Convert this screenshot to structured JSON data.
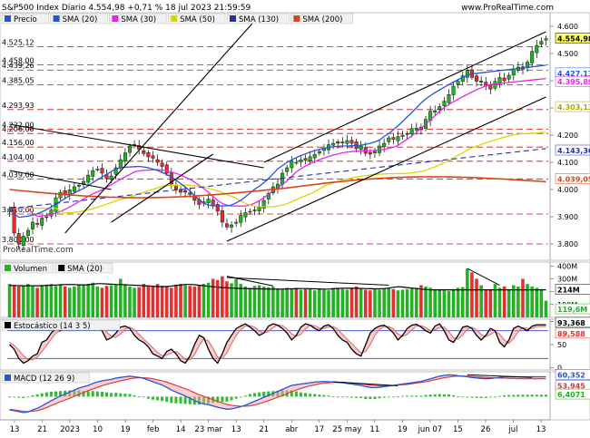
{
  "header": {
    "title": "S&P500 Index Diario 4.554,98 +0,71 % 18 jul 2023 21:59:59",
    "brand": "www.ProRealTime.com",
    "watermark": "ProRealTime.com"
  },
  "chart_data": [
    {
      "type": "candlestick",
      "panel": "price",
      "legend": [
        "Precio",
        "SMA (20)",
        "SMA (30)",
        "SMA (50)",
        "SMA (130)",
        "SMA (200)"
      ],
      "colors": {
        "up": "#22b222",
        "down": "#e03030",
        "sma20": "#2255dd",
        "sma30": "#ee22ee",
        "sma50": "#d8d800",
        "sma130": "#2233aa",
        "sma200": "#dd4411",
        "ref": "#cc1111"
      },
      "ylim": [
        3740,
        4650
      ],
      "yticks": [
        3800,
        3900,
        4000,
        4100,
        4200,
        4300,
        4400,
        4500,
        4600
      ],
      "ytick_labels": [
        "3.800",
        "3.900",
        "4.000",
        "4.100",
        "4.200",
        "4.300",
        "4.400",
        "4.500",
        "4.600"
      ],
      "left_levels": [
        4525.12,
        4458.0,
        4439.26,
        4385.05,
        4293.93,
        4222.0,
        4206.0,
        4156.0,
        4104.0,
        4039.0,
        3910.0,
        3800.0
      ],
      "left_level_labels": [
        "4.525,12",
        "4.458,00",
        "4.439,26",
        "4.385,05",
        "4.293,93",
        "4.222,00",
        "4.206,00",
        "4.156,00",
        "4.104,00",
        "4.039,00",
        "3.910,00",
        "3.800,00"
      ],
      "right_labels": [
        {
          "text": "4.554,98",
          "value": 4554.98,
          "bg": "#ffff66",
          "fg": "#000000"
        },
        {
          "text": "4.427,13",
          "value": 4427.13,
          "bg": "#ffffff",
          "fg": "#2255dd"
        },
        {
          "text": "4.395,89",
          "value": 4395.89,
          "bg": "#ffffff",
          "fg": "#ee22ee"
        },
        {
          "text": "4.303,13",
          "value": 4303.13,
          "bg": "#ffffff",
          "fg": "#a8a800"
        },
        {
          "text": "4.143,36",
          "value": 4143.36,
          "bg": "#ffffff",
          "fg": "#2233aa"
        },
        {
          "text": "4.039,05",
          "value": 4039.05,
          "bg": "#ffffff",
          "fg": "#dd4411"
        }
      ],
      "x_labels": [
        "13",
        "21",
        "2023",
        "10",
        "19",
        "feb",
        "14",
        "23 mar",
        "13",
        "21",
        "abr",
        "17",
        "25 may",
        "11",
        "19",
        "jun 07",
        "15",
        "26",
        "jul",
        "13"
      ],
      "closes": [
        3930,
        3840,
        3800,
        3828,
        3850,
        3880,
        3872,
        3895,
        3900,
        3925,
        3970,
        3990,
        3980,
        3999,
        4010,
        4016,
        4030,
        4053,
        4070,
        4075,
        4060,
        4040,
        4050,
        4080,
        4110,
        4135,
        4160,
        4165,
        4148,
        4132,
        4120,
        4115,
        4100,
        4085,
        4060,
        4020,
        4000,
        3990,
        3990,
        3982,
        3960,
        3945,
        3955,
        3965,
        3940,
        3920,
        3880,
        3862,
        3870,
        3880,
        3905,
        3915,
        3920,
        3925,
        3935,
        3960,
        3985,
        4010,
        4020,
        4060,
        4080,
        4105,
        4100,
        4109,
        4108,
        4121,
        4129,
        4140,
        4151,
        4165,
        4170,
        4170,
        4175,
        4180,
        4170,
        4150,
        4160,
        4133,
        4130,
        4140,
        4160,
        4170,
        4190,
        4185,
        4195,
        4200,
        4205,
        4224,
        4226,
        4220,
        4258,
        4288,
        4290,
        4305,
        4325,
        4349,
        4380,
        4398,
        4418,
        4438,
        4412,
        4398,
        4399,
        4380,
        4369,
        4398,
        4412,
        4400,
        4420,
        4444,
        4450,
        4442,
        4468,
        4508,
        4530,
        4545,
        4555
      ],
      "sma20": [
        3930,
        3910,
        3898,
        3900,
        3902,
        3906,
        3911,
        3918,
        3926,
        3936,
        3946,
        3957,
        3967,
        3978,
        3988,
        3996,
        4004,
        4014,
        4025,
        4036,
        4046,
        4056,
        4066,
        4076,
        4080,
        4082,
        4083,
        4084,
        4085,
        4083,
        4080,
        4075,
        4070,
        4063,
        4055,
        4046,
        4035,
        4022,
        4009,
        3995,
        3978,
        3962,
        3950,
        3943,
        3940,
        3940,
        3940,
        3940,
        3943,
        3951,
        3960,
        3973,
        3987,
        4001,
        4012,
        4025,
        4040,
        4058,
        4076,
        4088,
        4100,
        4109,
        4117,
        4125,
        4131,
        4138,
        4143,
        4148,
        4152,
        4155,
        4157,
        4159,
        4160,
        4160,
        4161,
        4162,
        4163,
        4166,
        4170,
        4175,
        4182,
        4195,
        4206,
        4220,
        4234,
        4250,
        4267,
        4283,
        4300,
        4318,
        4333,
        4345,
        4356,
        4366,
        4376,
        4386,
        4395,
        4404,
        4412,
        4420,
        4425,
        4427
      ]
    },
    {
      "type": "bar",
      "panel": "volume",
      "legend": [
        "Volumen",
        "SMA (20)"
      ],
      "ylim": [
        0,
        430
      ],
      "yticks": [
        100,
        200,
        300,
        400
      ],
      "ytick_labels": [
        "100M",
        "200M",
        "300M",
        "400M"
      ],
      "right_labels": [
        "214M",
        "119,6M"
      ],
      "values": [
        260,
        250,
        240,
        250,
        260,
        240,
        230,
        250,
        255,
        260,
        245,
        250,
        240,
        230,
        240,
        250,
        255,
        260,
        270,
        240,
        230,
        245,
        250,
        255,
        300,
        250,
        240,
        230,
        235,
        260,
        250,
        240,
        260,
        245,
        240,
        230,
        255,
        260,
        250,
        245,
        240,
        250,
        260,
        270,
        300,
        290,
        320,
        280,
        265,
        300,
        260,
        240,
        230,
        245,
        250,
        240,
        235,
        240,
        225,
        220,
        230,
        220,
        230,
        215,
        220,
        225,
        210,
        220,
        215,
        210,
        230,
        225,
        220,
        215,
        230,
        240,
        220,
        215,
        210,
        220,
        215,
        225,
        230,
        220,
        210,
        215,
        220,
        225,
        230,
        250,
        240,
        230,
        220,
        215,
        210,
        205,
        220,
        230,
        235,
        380,
        350,
        300,
        250,
        210,
        220,
        260,
        230,
        240,
        220,
        250,
        240,
        300,
        260,
        240,
        230,
        220,
        130
      ],
      "sma": [
        248,
        248,
        247,
        246,
        246,
        246,
        246,
        247,
        248,
        250,
        252,
        254,
        255,
        256,
        255,
        253,
        253,
        254,
        258,
        262,
        262,
        260,
        258,
        256,
        255,
        254,
        252,
        250,
        248,
        246,
        244,
        242,
        240,
        240,
        240,
        243,
        248,
        252,
        256,
        256,
        254,
        250,
        246,
        242,
        238,
        235,
        232,
        230,
        228,
        226,
        225,
        224,
        223,
        222,
        222,
        221,
        220,
        220,
        220,
        220,
        221,
        222,
        223,
        224,
        224,
        223,
        222,
        221,
        220,
        220,
        222,
        225,
        226,
        226,
        227,
        226,
        225,
        224,
        223,
        222,
        222,
        224,
        228,
        234,
        238,
        236,
        232,
        228,
        224,
        220,
        217,
        214,
        214,
        214,
        214,
        214,
        214
      ]
    },
    {
      "type": "line",
      "panel": "stochastic",
      "legend": [
        "Estocástico (14 3 5)"
      ],
      "ylim": [
        -5,
        105
      ],
      "yticks": [
        0,
        50,
        100
      ],
      "ytick_labels": [
        "0",
        "50",
        "100"
      ],
      "levels": [
        80,
        20
      ],
      "right_labels": [
        "93,368",
        "89,588"
      ],
      "k": [
        50,
        40,
        20,
        10,
        15,
        25,
        30,
        55,
        60,
        75,
        85,
        80,
        90,
        95,
        92,
        85,
        90,
        88,
        95,
        90,
        80,
        60,
        65,
        75,
        88,
        90,
        85,
        70,
        60,
        55,
        45,
        30,
        25,
        20,
        35,
        40,
        30,
        15,
        10,
        25,
        50,
        70,
        65,
        40,
        20,
        10,
        30,
        55,
        70,
        85,
        90,
        95,
        88,
        80,
        70,
        75,
        90,
        95,
        92,
        85,
        75,
        60,
        70,
        88,
        95,
        92,
        85,
        80,
        90,
        93,
        85,
        70,
        60,
        55,
        40,
        30,
        25,
        50,
        75,
        85,
        90,
        92,
        85,
        75,
        60,
        70,
        85,
        92,
        94,
        88,
        80,
        75,
        90,
        95,
        80,
        60,
        55,
        70,
        88,
        90,
        85,
        70,
        60,
        70,
        85,
        80,
        55,
        45,
        60,
        85,
        90,
        85,
        80,
        90,
        93
      ],
      "d": [
        55,
        48,
        38,
        26,
        18,
        17,
        23,
        35,
        48,
        62,
        75,
        80,
        85,
        88,
        92,
        91,
        89,
        88,
        90,
        91,
        87,
        77,
        68,
        66,
        73,
        83,
        88,
        82,
        72,
        62,
        53,
        43,
        33,
        26,
        27,
        32,
        35,
        28,
        18,
        17,
        28,
        48,
        62,
        58,
        42,
        23,
        20,
        32,
        52,
        70,
        82,
        90,
        91,
        88,
        79,
        75,
        78,
        87,
        92,
        91,
        84,
        73,
        68,
        72,
        84,
        92,
        91,
        86,
        85,
        88,
        89,
        83,
        72,
        62,
        52,
        42,
        32,
        35,
        50,
        70,
        83,
        89,
        89,
        84,
        73,
        68,
        72,
        82,
        90,
        91,
        87,
        80,
        82,
        87,
        88,
        78,
        65,
        62,
        71,
        83,
        88,
        82,
        72,
        67,
        72,
        78,
        73,
        60,
        53,
        63,
        78,
        87,
        85,
        85,
        89
      ]
    },
    {
      "type": "bar+line",
      "panel": "macd",
      "legend": [
        "MACD (12 26 9)"
      ],
      "ylim": [
        -70,
        75
      ],
      "right_labels": [
        "60,352",
        "53,945",
        "6,4071"
      ],
      "macd": [
        -40,
        -42,
        -45,
        -48,
        -46,
        -40,
        -35,
        -28,
        -20,
        -12,
        -5,
        2,
        8,
        14,
        20,
        26,
        30,
        34,
        40,
        44,
        48,
        50,
        52,
        56,
        58,
        60,
        62,
        60,
        58,
        55,
        50,
        45,
        40,
        35,
        28,
        20,
        14,
        8,
        2,
        -5,
        -12,
        -18,
        -22,
        -24,
        -28,
        -32,
        -35,
        -38,
        -37,
        -34,
        -30,
        -26,
        -20,
        -14,
        -8,
        -2,
        4,
        10,
        16,
        22,
        28,
        34,
        36,
        38,
        40,
        42,
        44,
        45,
        46,
        45,
        44,
        43,
        42,
        40,
        38,
        36,
        34,
        30,
        28,
        27,
        28,
        30,
        32,
        34,
        36,
        38,
        40,
        42,
        44,
        46,
        50,
        54,
        58,
        62,
        64,
        66,
        65,
        63,
        62,
        60,
        58,
        56,
        55,
        54,
        55,
        56,
        58,
        60,
        60
      ],
      "signal": [
        -38,
        -40,
        -42,
        -44,
        -45,
        -44,
        -42,
        -38,
        -33,
        -27,
        -21,
        -15,
        -10,
        -5,
        1,
        7,
        13,
        18,
        23,
        28,
        33,
        37,
        41,
        44,
        48,
        51,
        54,
        56,
        57,
        57,
        56,
        54,
        51,
        48,
        44,
        39,
        34,
        29,
        24,
        18,
        12,
        6,
        1,
        -4,
        -9,
        -14,
        -19,
        -23,
        -26,
        -28,
        -29,
        -29,
        -28,
        -25,
        -21,
        -17,
        -12,
        -7,
        -2,
        3,
        9,
        15,
        20,
        25,
        29,
        33,
        36,
        39,
        41,
        42,
        43,
        43,
        43,
        42,
        41,
        40,
        38,
        37,
        35,
        34,
        33,
        33,
        33,
        34,
        35,
        36,
        37,
        39,
        41,
        43,
        45,
        48,
        51,
        54,
        57,
        59,
        61,
        62,
        62,
        62,
        61,
        60,
        59,
        58,
        57,
        57,
        56,
        56,
        55,
        55,
        54
      ]
    }
  ]
}
